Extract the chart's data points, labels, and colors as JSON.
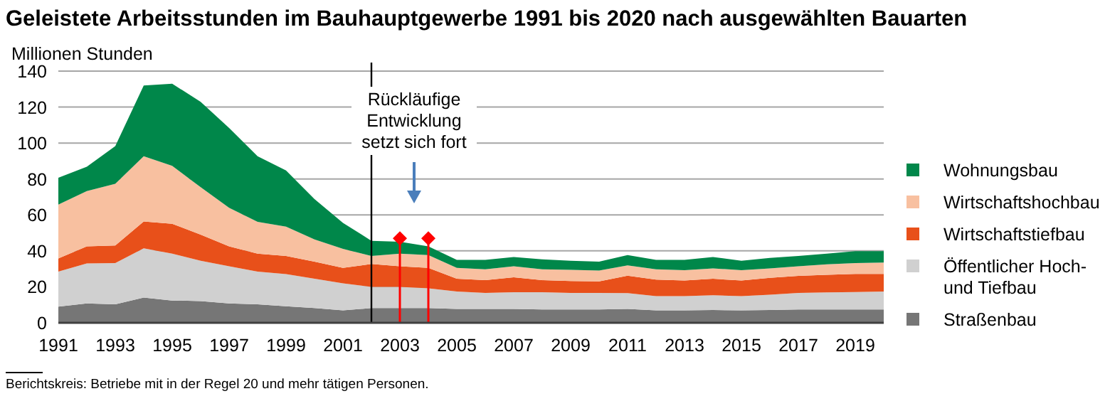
{
  "chart_data": {
    "type": "area",
    "stacked": true,
    "title": "Geleistete Arbeitsstunden im Bauhauptgewerbe 1991 bis 2020 nach ausgewählten Bauarten",
    "ylabel": "Millionen Stunden",
    "x": [
      1991,
      1992,
      1993,
      1994,
      1995,
      1996,
      1997,
      1998,
      1999,
      2000,
      2001,
      2002,
      2003,
      2004,
      2005,
      2006,
      2007,
      2008,
      2009,
      2010,
      2011,
      2012,
      2013,
      2014,
      2015,
      2016,
      2017,
      2018,
      2019,
      2020
    ],
    "xlim": [
      1991,
      2020
    ],
    "xticks": [
      1991,
      1993,
      1995,
      1997,
      1999,
      2001,
      2003,
      2005,
      2007,
      2009,
      2011,
      2013,
      2015,
      2017,
      2019
    ],
    "ylim": [
      0,
      140
    ],
    "yticks": [
      0,
      20,
      40,
      60,
      80,
      100,
      120,
      140
    ],
    "grid": "y",
    "legend": "right",
    "series": [
      {
        "name": "Straßenbau",
        "color": "#767676",
        "values": [
          9,
          10.8,
          10.3,
          14,
          12.4,
          12.1,
          10.8,
          10.3,
          9.2,
          8.2,
          6.9,
          8.2,
          8.2,
          8.2,
          7.7,
          7.7,
          7.7,
          7.4,
          7.4,
          7.4,
          7.7,
          6.9,
          6.9,
          7.1,
          6.9,
          7.1,
          7.4,
          7.4,
          7.4,
          7.4
        ]
      },
      {
        "name": "Öffentlicher Hoch- und Tiefbau",
        "color": "#d0d0d0",
        "values": [
          19.5,
          22.2,
          22.9,
          27.4,
          26.1,
          22.4,
          20.6,
          18.2,
          17.9,
          16.3,
          15,
          11.8,
          11.8,
          11,
          9.7,
          8.9,
          9.3,
          9.6,
          9.2,
          9.2,
          8.8,
          7.9,
          7.9,
          8.2,
          7.9,
          8.5,
          9.2,
          9.5,
          9.7,
          10
        ]
      },
      {
        "name": "Wirtschaftstiefbau",
        "color": "#e8501a",
        "values": [
          7.3,
          9.5,
          9.8,
          15,
          16.6,
          14.5,
          11.1,
          10,
          10.1,
          9.5,
          8.7,
          12.7,
          11.4,
          11.4,
          7.1,
          7.1,
          8.3,
          6.7,
          6.6,
          6.4,
          9.7,
          9.2,
          8.7,
          9.2,
          8.7,
          9.4,
          9.5,
          9.8,
          10.1,
          9.8
        ]
      },
      {
        "name": "Wirtschaftshochbau",
        "color": "#f8c0a0",
        "values": [
          29.9,
          30.8,
          34.3,
          36.2,
          32.2,
          26.4,
          21.5,
          17.7,
          16.3,
          12.4,
          10.5,
          4.5,
          7.1,
          7.1,
          6.1,
          6.1,
          6.1,
          6.1,
          6.3,
          6.1,
          5.7,
          5.8,
          5.8,
          5.8,
          5.8,
          5.3,
          5.3,
          5.8,
          6,
          6.3
        ]
      },
      {
        "name": "Wohnungsbau",
        "color": "#00874a",
        "values": [
          15,
          13.5,
          21,
          39.4,
          45.7,
          47.5,
          44.4,
          36.4,
          31.2,
          22.4,
          14.5,
          8.4,
          6.6,
          4.8,
          4.4,
          5.2,
          5.2,
          5.5,
          5,
          4.9,
          5.8,
          5.2,
          5.7,
          6.3,
          5.2,
          5.8,
          5.8,
          6,
          6.6,
          6.3
        ]
      },
      {
        "type": "lollipop",
        "color": "#ff0000",
        "marker": "diamond",
        "x": [
          2003,
          2004
        ],
        "values": [
          47,
          47
        ]
      }
    ],
    "ref_lines": [
      {
        "axis": "x",
        "value": 2002,
        "label": "Rückläufige Entwicklung setzt sich fort",
        "color": "#000000"
      }
    ],
    "annotations": [
      "Berichtskreis: Betriebe mit in der Regel 20 und mehr tätigen Personen."
    ]
  }
}
